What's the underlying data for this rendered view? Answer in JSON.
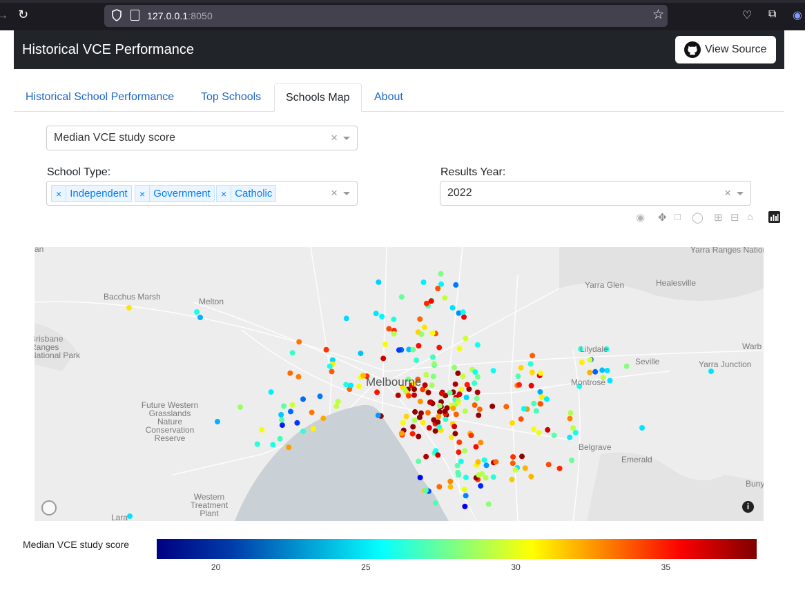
{
  "browser": {
    "url_host": "127.0.0.1",
    "url_port": ":8050"
  },
  "header": {
    "title": "Historical VCE Performance",
    "view_source_label": "View Source"
  },
  "tabs": [
    {
      "label": "Historical School Performance",
      "active": false
    },
    {
      "label": "Top Schools",
      "active": false
    },
    {
      "label": "Schools Map",
      "active": true
    },
    {
      "label": "About",
      "active": false
    }
  ],
  "metric_select": {
    "value": "Median VCE study score"
  },
  "school_type": {
    "label": "School Type:",
    "chips": [
      "Independent",
      "Government",
      "Catholic"
    ]
  },
  "results_year": {
    "label": "Results Year:",
    "value": "2022"
  },
  "map": {
    "places": [
      "Yarra Ranges National Park",
      "Yarra Glen",
      "Healesville",
      "Bacchus Marsh",
      "Melton",
      "Brisbane Ranges National Park",
      "Lilydale",
      "Warb",
      "Seville",
      "Yarra Junction",
      "Melbourne",
      "Montrose",
      "Future Western Grasslands Nature Conservation Reserve",
      "Belgrave",
      "Emerald",
      "Buny",
      "Western Treatment Plant",
      "Lara",
      "an"
    ]
  },
  "colorbar": {
    "title": "Median VCE study score",
    "min": 18,
    "max": 38,
    "ticks": [
      20,
      25,
      30,
      35
    ]
  }
}
